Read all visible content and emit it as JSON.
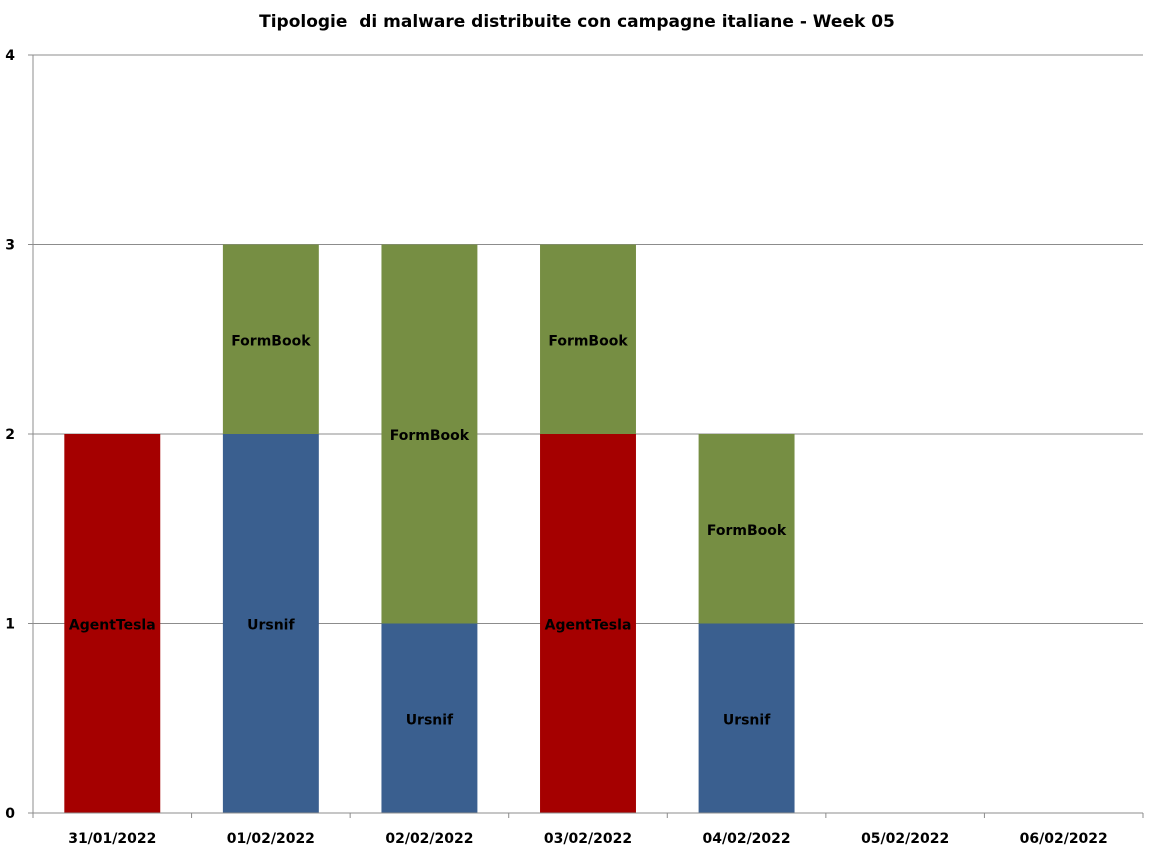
{
  "chart_data": {
    "type": "bar",
    "stacked": true,
    "title": "Tipologie  di malware distribuite con campagne italiane - Week 05",
    "xlabel": "",
    "ylabel": "",
    "ylim": [
      0,
      4
    ],
    "yticks": [
      "0",
      "1",
      "2",
      "3",
      "4"
    ],
    "grid": true,
    "legend": "none",
    "categories": [
      "31/01/2022",
      "01/02/2022",
      "02/02/2022",
      "03/02/2022",
      "04/02/2022",
      "05/02/2022",
      "06/02/2022"
    ],
    "colors": {
      "AgentTesla": "#a50000",
      "Ursnif": "#3a5f8f",
      "FormBook": "#768e43"
    },
    "stacks": [
      [
        {
          "label": "AgentTesla",
          "value": 2
        }
      ],
      [
        {
          "label": "Ursnif",
          "value": 2
        },
        {
          "label": "FormBook",
          "value": 1
        }
      ],
      [
        {
          "label": "Ursnif",
          "value": 1
        },
        {
          "label": "FormBook",
          "value": 2
        }
      ],
      [
        {
          "label": "AgentTesla",
          "value": 2
        },
        {
          "label": "FormBook",
          "value": 1
        }
      ],
      [
        {
          "label": "Ursnif",
          "value": 1
        },
        {
          "label": "FormBook",
          "value": 1
        }
      ],
      [],
      []
    ]
  }
}
